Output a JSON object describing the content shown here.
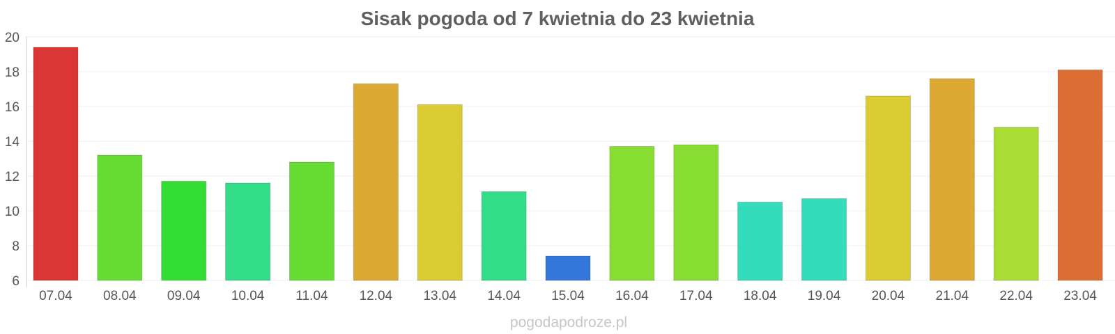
{
  "chart_data": {
    "type": "bar",
    "title": "Sisak pogoda od 7 kwietnia do 23 kwietnia",
    "xlabel": "",
    "ylabel": "",
    "ylim": [
      6,
      20
    ],
    "yticks": [
      "6",
      "8",
      "10",
      "12",
      "14",
      "16",
      "18",
      "20"
    ],
    "grid": true,
    "categories": [
      "07.04",
      "08.04",
      "09.04",
      "10.04",
      "11.04",
      "12.04",
      "13.04",
      "14.04",
      "15.04",
      "16.04",
      "17.04",
      "18.04",
      "19.04",
      "20.04",
      "21.04",
      "22.04",
      "23.04"
    ],
    "values": [
      19.4,
      13.2,
      11.7,
      11.6,
      12.8,
      17.3,
      16.1,
      11.1,
      7.4,
      13.7,
      13.8,
      10.5,
      10.7,
      16.6,
      17.6,
      14.8,
      18.1
    ],
    "colors": [
      "#dc3535",
      "#66dd33",
      "#33dd33",
      "#33dd88",
      "#66dd33",
      "#dcaa33",
      "#dccc33",
      "#33dd88",
      "#3377dd",
      "#88dd33",
      "#88dd33",
      "#33ddbb",
      "#33ddbb",
      "#dccc33",
      "#dcaa33",
      "#aadd33",
      "#dd6e33"
    ]
  },
  "watermark": "pogodapodroze.pl"
}
